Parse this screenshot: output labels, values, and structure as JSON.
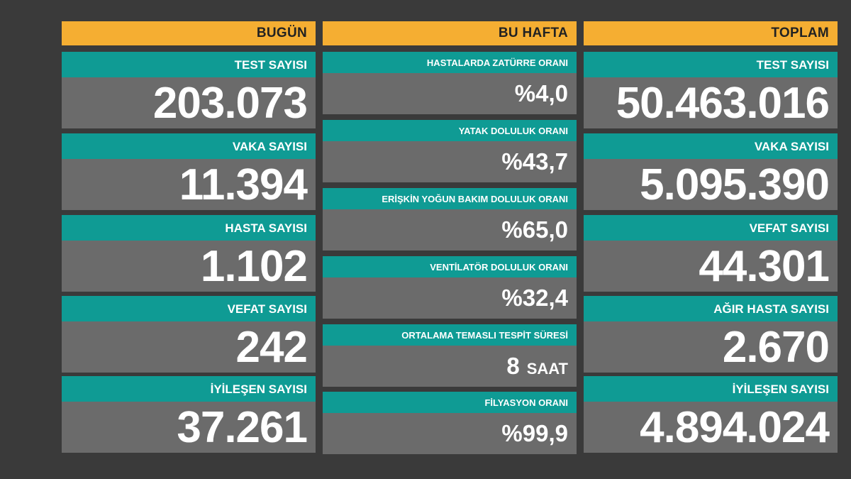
{
  "today": {
    "header": "BUGÜN",
    "cards": [
      {
        "label": "TEST SAYISI",
        "value": "203.073"
      },
      {
        "label": "VAKA SAYISI",
        "value": "11.394"
      },
      {
        "label": "HASTA SAYISI",
        "value": "1.102"
      },
      {
        "label": "VEFAT SAYISI",
        "value": "242"
      },
      {
        "label": "İYİLEŞEN SAYISI",
        "value": "37.261"
      }
    ]
  },
  "week": {
    "header": "BU HAFTA",
    "cards": [
      {
        "label": "HASTALARDA ZATÜRRE ORANI",
        "value": "%4,0"
      },
      {
        "label": "YATAK DOLULUK ORANI",
        "value": "%43,7"
      },
      {
        "label": "ERİŞKİN YOĞUN BAKIM DOLULUK ORANI",
        "value": "%65,0"
      },
      {
        "label": "VENTİLATÖR DOLULUK ORANI",
        "value": "%32,4"
      },
      {
        "label": "ORTALAMA TEMASLI TESPİT SÜRESİ",
        "value": "8",
        "unit": "SAAT"
      },
      {
        "label": "FİLYASYON ORANI",
        "value": "%99,9"
      }
    ]
  },
  "total": {
    "header": "TOPLAM",
    "cards": [
      {
        "label": "TEST SAYISI",
        "value": "50.463.016"
      },
      {
        "label": "VAKA SAYISI",
        "value": "5.095.390"
      },
      {
        "label": "VEFAT SAYISI",
        "value": "44.301"
      },
      {
        "label": "AĞIR HASTA SAYISI",
        "value": "2.670"
      },
      {
        "label": "İYİLEŞEN SAYISI",
        "value": "4.894.024"
      }
    ]
  },
  "colors": {
    "background": "#3a3a3a",
    "header": "#f5ae32",
    "label_bar": "#0f9b94",
    "value_box": "#6b6b6b"
  }
}
